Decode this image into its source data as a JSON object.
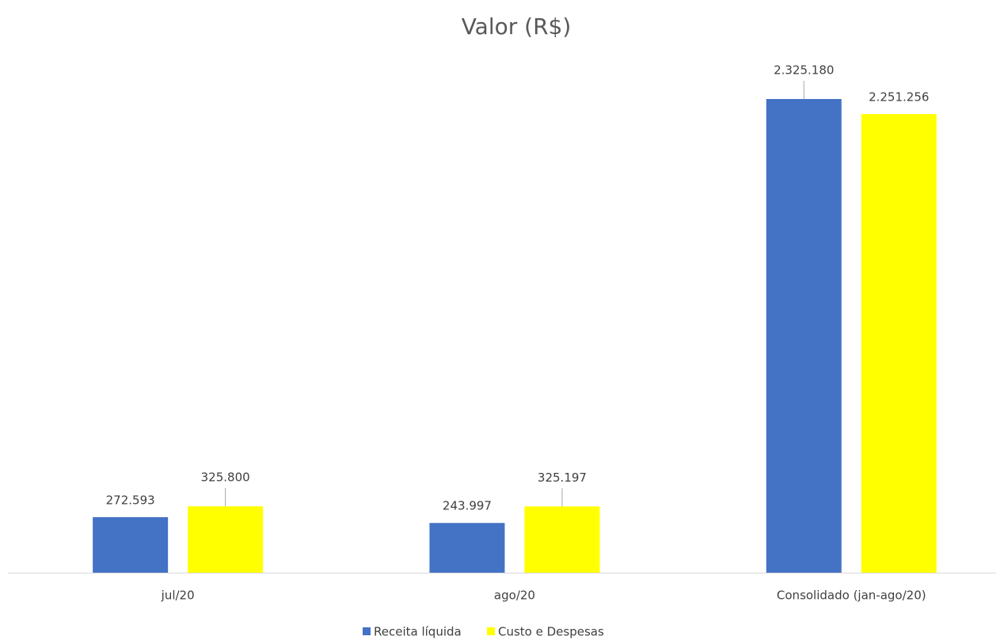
{
  "chart_data": {
    "type": "bar",
    "title": "Valor (R$)",
    "categories": [
      "jul/20",
      "ago/20",
      "Consolidado (jan-ago/20)"
    ],
    "series": [
      {
        "name": "Receita líquida",
        "color": "#4472c4",
        "values": [
          272593,
          243997,
          2325180
        ],
        "value_labels": [
          "272.593",
          "243.997",
          "2.325.180"
        ]
      },
      {
        "name": "Custo e Despesas",
        "color": "#ffff00",
        "values": [
          325800,
          325197,
          2251256
        ],
        "value_labels": [
          "325.800",
          "325.197",
          "2.251.256"
        ]
      }
    ],
    "legend": "bottom"
  }
}
